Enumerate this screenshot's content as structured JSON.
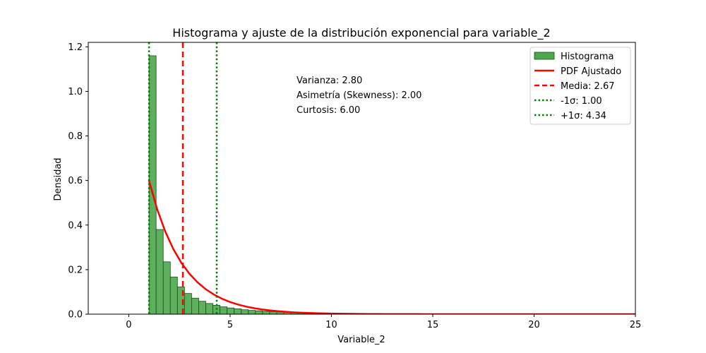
{
  "chart_data": {
    "type": "bar",
    "title": "Histograma y ajuste de la distribución exponencial para variable_2",
    "xlabel": "Variable_2",
    "ylabel": "Densidad",
    "xlim": [
      -2,
      25
    ],
    "ylim": [
      0,
      1.22
    ],
    "xticks": [
      0,
      5,
      10,
      15,
      20,
      25
    ],
    "xtick_labels": [
      "0",
      "5",
      "10",
      "15",
      "20",
      "25"
    ],
    "yticks": [
      0.0,
      0.2,
      0.4,
      0.6,
      0.8,
      1.0,
      1.2
    ],
    "ytick_labels": [
      "0.0",
      "0.2",
      "0.4",
      "0.6",
      "0.8",
      "1.0",
      "1.2"
    ],
    "grid": false,
    "legend_position": "top-right",
    "histogram": {
      "name": "Histograma",
      "color": "#4ca64c",
      "edge_color": "#1f4d1f",
      "bin_start": 1.0,
      "bin_width": 0.35,
      "density": [
        1.16,
        0.38,
        0.235,
        0.167,
        0.122,
        0.093,
        0.072,
        0.058,
        0.048,
        0.04,
        0.033,
        0.028,
        0.024,
        0.02,
        0.017,
        0.015,
        0.013,
        0.011,
        0.01,
        0.009,
        0.008,
        0.007,
        0.006,
        0.005,
        0.0045,
        0.004,
        0.0035,
        0.003,
        0.0026,
        0.0023,
        0.002,
        0.0018,
        0.0016,
        0.0014,
        0.0012,
        0.001,
        0.0009,
        0.0008,
        0.0007,
        0.0006,
        0.0005,
        0.0005,
        0.0004,
        0.0004,
        0.0003,
        0.0003,
        0.0003,
        0.0002,
        0.0002,
        0.0002,
        0.0002,
        0.0001,
        0.0001,
        0.0001,
        0.0001,
        0.0001,
        0.0001,
        0.0001,
        0.0001,
        0.0001,
        0.0001,
        0.0001,
        0.0001,
        0.0001,
        0.0001,
        0.0001,
        0.0001
      ]
    },
    "pdf": {
      "name": "PDF Ajustado",
      "color": "#ff0000",
      "loc": 1.0,
      "scale": 1.67,
      "x_max": 25
    },
    "vlines": [
      {
        "name": "Media: 2.67",
        "x": 2.67,
        "color": "#ff0000",
        "style": "dashed"
      },
      {
        "name": "-1σ: 1.00",
        "x": 1.0,
        "color": "#008000",
        "style": "dotted"
      },
      {
        "name": "+1σ: 4.34",
        "x": 4.34,
        "color": "#008000",
        "style": "dotted"
      }
    ],
    "annotations": [
      "Varianza: 2.80",
      "Asimetría (Skewness): 2.00",
      "Curtosis: 6.00"
    ]
  }
}
